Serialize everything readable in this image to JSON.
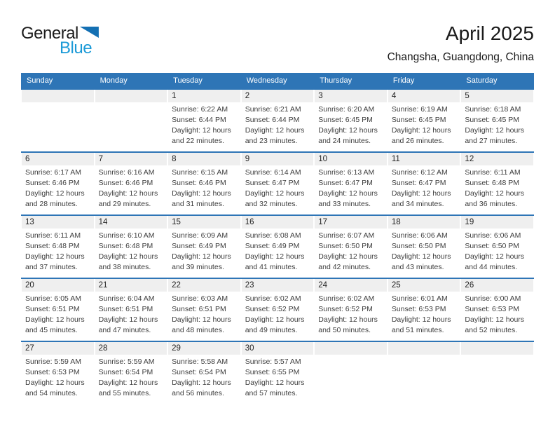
{
  "logo": {
    "text_top": "General",
    "text_bottom": "Blue"
  },
  "page_header": {
    "title": "April 2025",
    "subtitle": "Changsha, Guangdong, China"
  },
  "labels": {
    "sunrise": "Sunrise:",
    "sunset": "Sunset:",
    "daylight": "Daylight:"
  },
  "weekdays": [
    "Sunday",
    "Monday",
    "Tuesday",
    "Wednesday",
    "Thursday",
    "Friday",
    "Saturday"
  ],
  "colors": {
    "header_blue": "#2E75B6",
    "row_border_blue": "#2E75B6",
    "day_band_gray": "#EFEFEF",
    "logo_blue": "#1B9AD7",
    "logo_triangle_blue": "#1470B3"
  },
  "weeks": [
    [
      null,
      null,
      {
        "day": "1",
        "sunrise": "6:22 AM",
        "sunset": "6:44 PM",
        "daylight": "12 hours and 22 minutes."
      },
      {
        "day": "2",
        "sunrise": "6:21 AM",
        "sunset": "6:44 PM",
        "daylight": "12 hours and 23 minutes."
      },
      {
        "day": "3",
        "sunrise": "6:20 AM",
        "sunset": "6:45 PM",
        "daylight": "12 hours and 24 minutes."
      },
      {
        "day": "4",
        "sunrise": "6:19 AM",
        "sunset": "6:45 PM",
        "daylight": "12 hours and 26 minutes."
      },
      {
        "day": "5",
        "sunrise": "6:18 AM",
        "sunset": "6:45 PM",
        "daylight": "12 hours and 27 minutes."
      }
    ],
    [
      {
        "day": "6",
        "sunrise": "6:17 AM",
        "sunset": "6:46 PM",
        "daylight": "12 hours and 28 minutes."
      },
      {
        "day": "7",
        "sunrise": "6:16 AM",
        "sunset": "6:46 PM",
        "daylight": "12 hours and 29 minutes."
      },
      {
        "day": "8",
        "sunrise": "6:15 AM",
        "sunset": "6:46 PM",
        "daylight": "12 hours and 31 minutes."
      },
      {
        "day": "9",
        "sunrise": "6:14 AM",
        "sunset": "6:47 PM",
        "daylight": "12 hours and 32 minutes."
      },
      {
        "day": "10",
        "sunrise": "6:13 AM",
        "sunset": "6:47 PM",
        "daylight": "12 hours and 33 minutes."
      },
      {
        "day": "11",
        "sunrise": "6:12 AM",
        "sunset": "6:47 PM",
        "daylight": "12 hours and 34 minutes."
      },
      {
        "day": "12",
        "sunrise": "6:11 AM",
        "sunset": "6:48 PM",
        "daylight": "12 hours and 36 minutes."
      }
    ],
    [
      {
        "day": "13",
        "sunrise": "6:11 AM",
        "sunset": "6:48 PM",
        "daylight": "12 hours and 37 minutes."
      },
      {
        "day": "14",
        "sunrise": "6:10 AM",
        "sunset": "6:48 PM",
        "daylight": "12 hours and 38 minutes."
      },
      {
        "day": "15",
        "sunrise": "6:09 AM",
        "sunset": "6:49 PM",
        "daylight": "12 hours and 39 minutes."
      },
      {
        "day": "16",
        "sunrise": "6:08 AM",
        "sunset": "6:49 PM",
        "daylight": "12 hours and 41 minutes."
      },
      {
        "day": "17",
        "sunrise": "6:07 AM",
        "sunset": "6:50 PM",
        "daylight": "12 hours and 42 minutes."
      },
      {
        "day": "18",
        "sunrise": "6:06 AM",
        "sunset": "6:50 PM",
        "daylight": "12 hours and 43 minutes."
      },
      {
        "day": "19",
        "sunrise": "6:06 AM",
        "sunset": "6:50 PM",
        "daylight": "12 hours and 44 minutes."
      }
    ],
    [
      {
        "day": "20",
        "sunrise": "6:05 AM",
        "sunset": "6:51 PM",
        "daylight": "12 hours and 45 minutes."
      },
      {
        "day": "21",
        "sunrise": "6:04 AM",
        "sunset": "6:51 PM",
        "daylight": "12 hours and 47 minutes."
      },
      {
        "day": "22",
        "sunrise": "6:03 AM",
        "sunset": "6:51 PM",
        "daylight": "12 hours and 48 minutes."
      },
      {
        "day": "23",
        "sunrise": "6:02 AM",
        "sunset": "6:52 PM",
        "daylight": "12 hours and 49 minutes."
      },
      {
        "day": "24",
        "sunrise": "6:02 AM",
        "sunset": "6:52 PM",
        "daylight": "12 hours and 50 minutes."
      },
      {
        "day": "25",
        "sunrise": "6:01 AM",
        "sunset": "6:53 PM",
        "daylight": "12 hours and 51 minutes."
      },
      {
        "day": "26",
        "sunrise": "6:00 AM",
        "sunset": "6:53 PM",
        "daylight": "12 hours and 52 minutes."
      }
    ],
    [
      {
        "day": "27",
        "sunrise": "5:59 AM",
        "sunset": "6:53 PM",
        "daylight": "12 hours and 54 minutes."
      },
      {
        "day": "28",
        "sunrise": "5:59 AM",
        "sunset": "6:54 PM",
        "daylight": "12 hours and 55 minutes."
      },
      {
        "day": "29",
        "sunrise": "5:58 AM",
        "sunset": "6:54 PM",
        "daylight": "12 hours and 56 minutes."
      },
      {
        "day": "30",
        "sunrise": "5:57 AM",
        "sunset": "6:55 PM",
        "daylight": "12 hours and 57 minutes."
      },
      null,
      null,
      null
    ]
  ]
}
